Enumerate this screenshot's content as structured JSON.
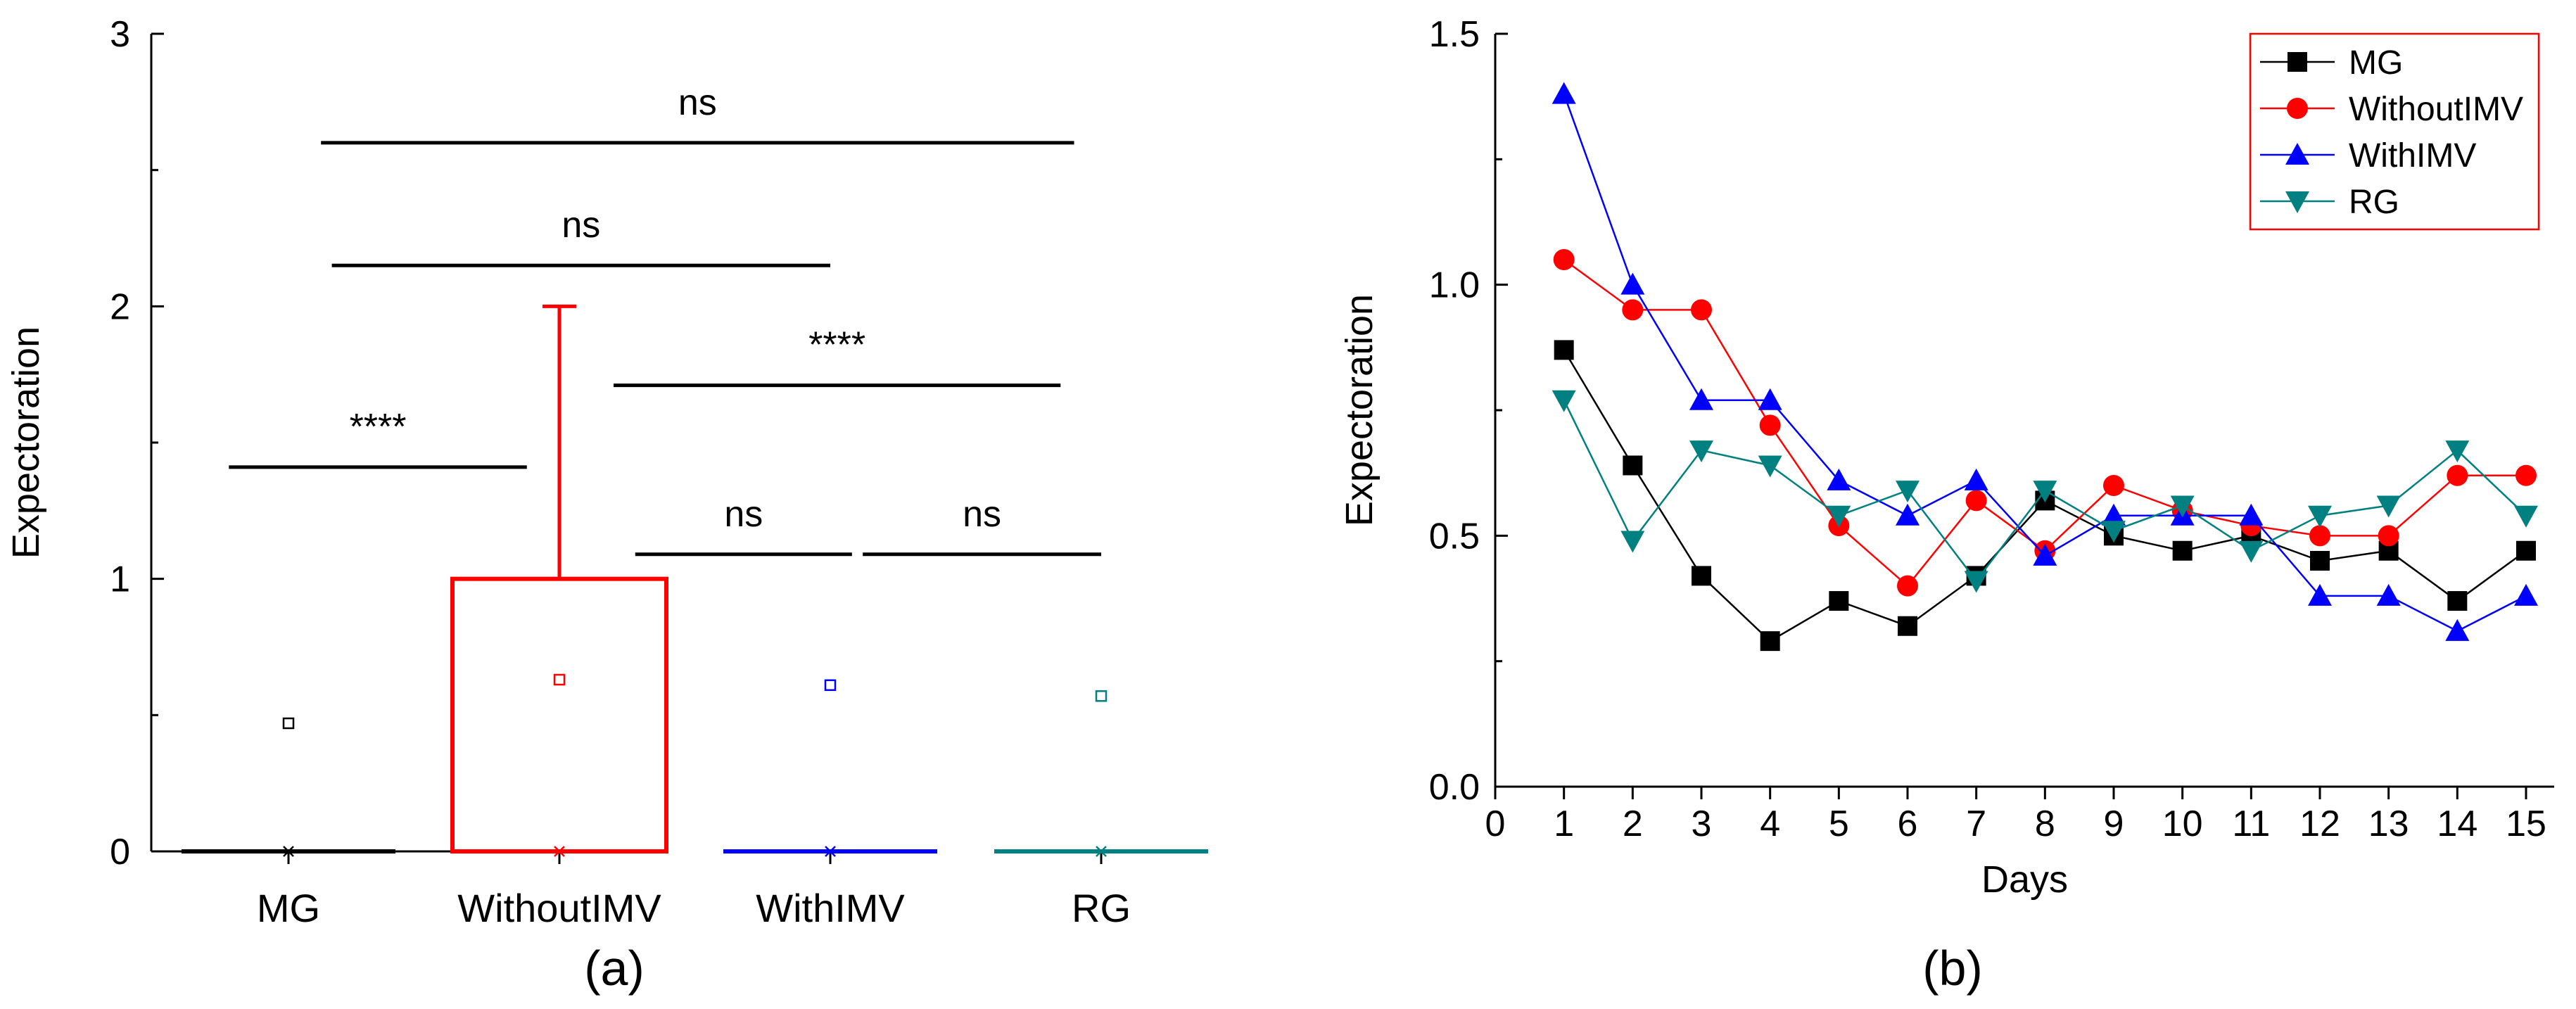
{
  "chart_data": [
    {
      "panel": "a",
      "type": "box",
      "ylabel": "Expectoration",
      "ylim": [
        0,
        3
      ],
      "yticks": [
        "0",
        "1",
        "2",
        "3"
      ],
      "categories": [
        "MG",
        "WithoutIMV",
        "WithIMV",
        "RG"
      ],
      "colors": [
        "#000000",
        "#ff0000",
        "#0000ff",
        "#008080"
      ],
      "boxes": [
        {
          "q1": 0,
          "median": 0,
          "q3": 0,
          "whisker_low": 0,
          "whisker_high": 0,
          "mean": 0.47
        },
        {
          "q1": 0,
          "median": 0,
          "q3": 1,
          "whisker_low": 0,
          "whisker_high": 2,
          "mean": 0.63
        },
        {
          "q1": 0,
          "median": 0,
          "q3": 0,
          "whisker_low": 0,
          "whisker_high": 0,
          "mean": 0.61
        },
        {
          "q1": 0,
          "median": 0,
          "q3": 0,
          "whisker_low": 0,
          "whisker_high": 0,
          "mean": 0.57
        }
      ],
      "significance": [
        {
          "label": "ns",
          "from": 0.12,
          "to": 2.9,
          "level": 2.6
        },
        {
          "label": "ns",
          "from": 0.16,
          "to": 2.0,
          "level": 2.15
        },
        {
          "label": "****",
          "from": 1.2,
          "to": 2.85,
          "level": 1.71
        },
        {
          "label": "****",
          "from": -0.22,
          "to": 0.88,
          "level": 1.41
        },
        {
          "label": "ns",
          "from": 1.28,
          "to": 2.08,
          "level": 1.09
        },
        {
          "label": "ns",
          "from": 2.12,
          "to": 3.0,
          "level": 1.09
        }
      ]
    },
    {
      "panel": "b",
      "type": "line",
      "xlabel": "Days",
      "ylabel": "Expectoration",
      "xlim": [
        0,
        15
      ],
      "ylim": [
        0,
        1.5
      ],
      "xticks": [
        "0",
        "1",
        "2",
        "3",
        "4",
        "5",
        "6",
        "7",
        "8",
        "9",
        "10",
        "11",
        "12",
        "13",
        "14",
        "15"
      ],
      "yticks": [
        "0.0",
        "0.5",
        "1.0",
        "1.5"
      ],
      "legend_position": "top-right",
      "x": [
        1,
        2,
        3,
        4,
        5,
        6,
        7,
        8,
        9,
        10,
        11,
        12,
        13,
        14,
        15
      ],
      "series": [
        {
          "name": "MG",
          "color": "#000000",
          "marker": "square",
          "values": [
            0.87,
            0.64,
            0.42,
            0.29,
            0.37,
            0.32,
            0.42,
            0.57,
            0.5,
            0.47,
            0.5,
            0.45,
            0.47,
            0.37,
            0.47
          ]
        },
        {
          "name": "WithoutIMV",
          "color": "#ff0000",
          "marker": "circle",
          "values": [
            1.05,
            0.95,
            0.95,
            0.72,
            0.52,
            0.4,
            0.57,
            0.47,
            0.6,
            0.55,
            0.52,
            0.5,
            0.5,
            0.62,
            0.62
          ]
        },
        {
          "name": "WithIMV",
          "color": "#0000ff",
          "marker": "triangle-up",
          "values": [
            1.38,
            1.0,
            0.77,
            0.77,
            0.61,
            0.54,
            0.61,
            0.46,
            0.54,
            0.54,
            0.54,
            0.38,
            0.38,
            0.31,
            0.38
          ]
        },
        {
          "name": "RG",
          "color": "#008080",
          "marker": "triangle-down",
          "values": [
            0.77,
            0.49,
            0.67,
            0.64,
            0.54,
            0.59,
            0.41,
            0.59,
            0.51,
            0.56,
            0.47,
            0.54,
            0.56,
            0.67,
            0.54
          ]
        }
      ]
    }
  ],
  "panel_labels": [
    "(a)",
    "(b)"
  ]
}
